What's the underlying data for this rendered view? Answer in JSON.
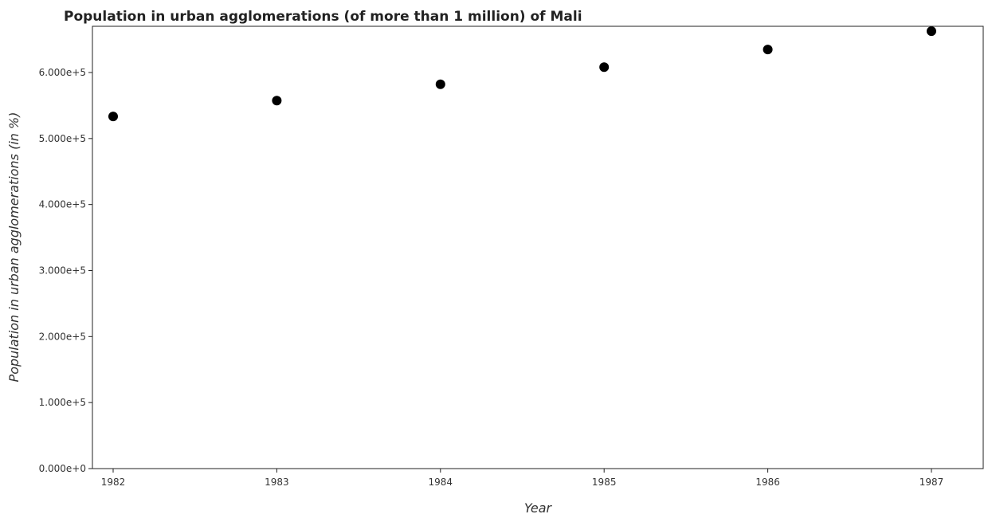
{
  "chart_data": {
    "type": "scatter",
    "title": "Population in urban agglomerations (of more than 1 million) of Mali",
    "xlabel": "Year",
    "ylabel": "Population in urban agglomerations (in %)",
    "x": [
      "1982",
      "1983",
      "1984",
      "1985",
      "1986",
      "1987"
    ],
    "values": [
      533500,
      557400,
      582200,
      608100,
      634800,
      662600
    ],
    "ylim": [
      0,
      670000
    ],
    "yticks": [
      0,
      100000,
      200000,
      300000,
      400000,
      500000,
      600000
    ],
    "ytick_labels": [
      "0.000e+0",
      "1.000e+5",
      "2.000e+5",
      "3.000e+5",
      "4.000e+5",
      "5.000e+5",
      "6.000e+5"
    ],
    "grid": false,
    "legend": "none",
    "marker_color": "#000000"
  }
}
